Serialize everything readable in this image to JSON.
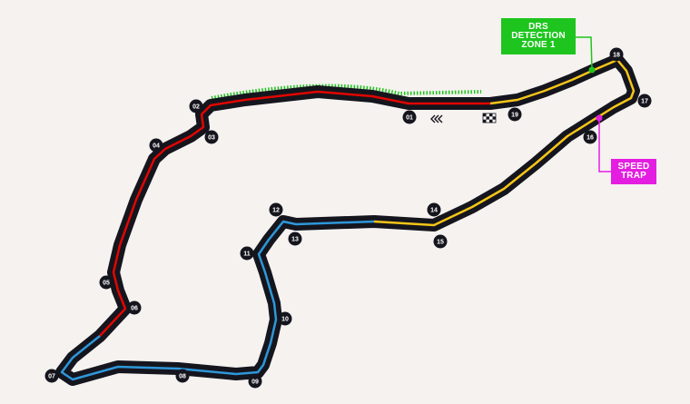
{
  "map": {
    "background_color": "#f5f2ef",
    "track_color": "#15151e",
    "sector_colors": {
      "sector_1": "#e10600",
      "sector_2": "#2e97d9",
      "sector_3": "#f5c518"
    },
    "drs_zone_color": "#1ec51e",
    "speed_trap_color": "#e41ee0",
    "corners": [
      "01",
      "02",
      "03",
      "04",
      "05",
      "06",
      "07",
      "08",
      "09",
      "10",
      "11",
      "12",
      "13",
      "14",
      "15",
      "16",
      "17",
      "18",
      "19"
    ],
    "icons": [
      "start-finish-flag-icon",
      "direction-chevrons-icon"
    ]
  },
  "callouts": {
    "drs": "DRS\nDETECTION\nZONE 1",
    "speed_trap": "SPEED\nTRAP"
  }
}
